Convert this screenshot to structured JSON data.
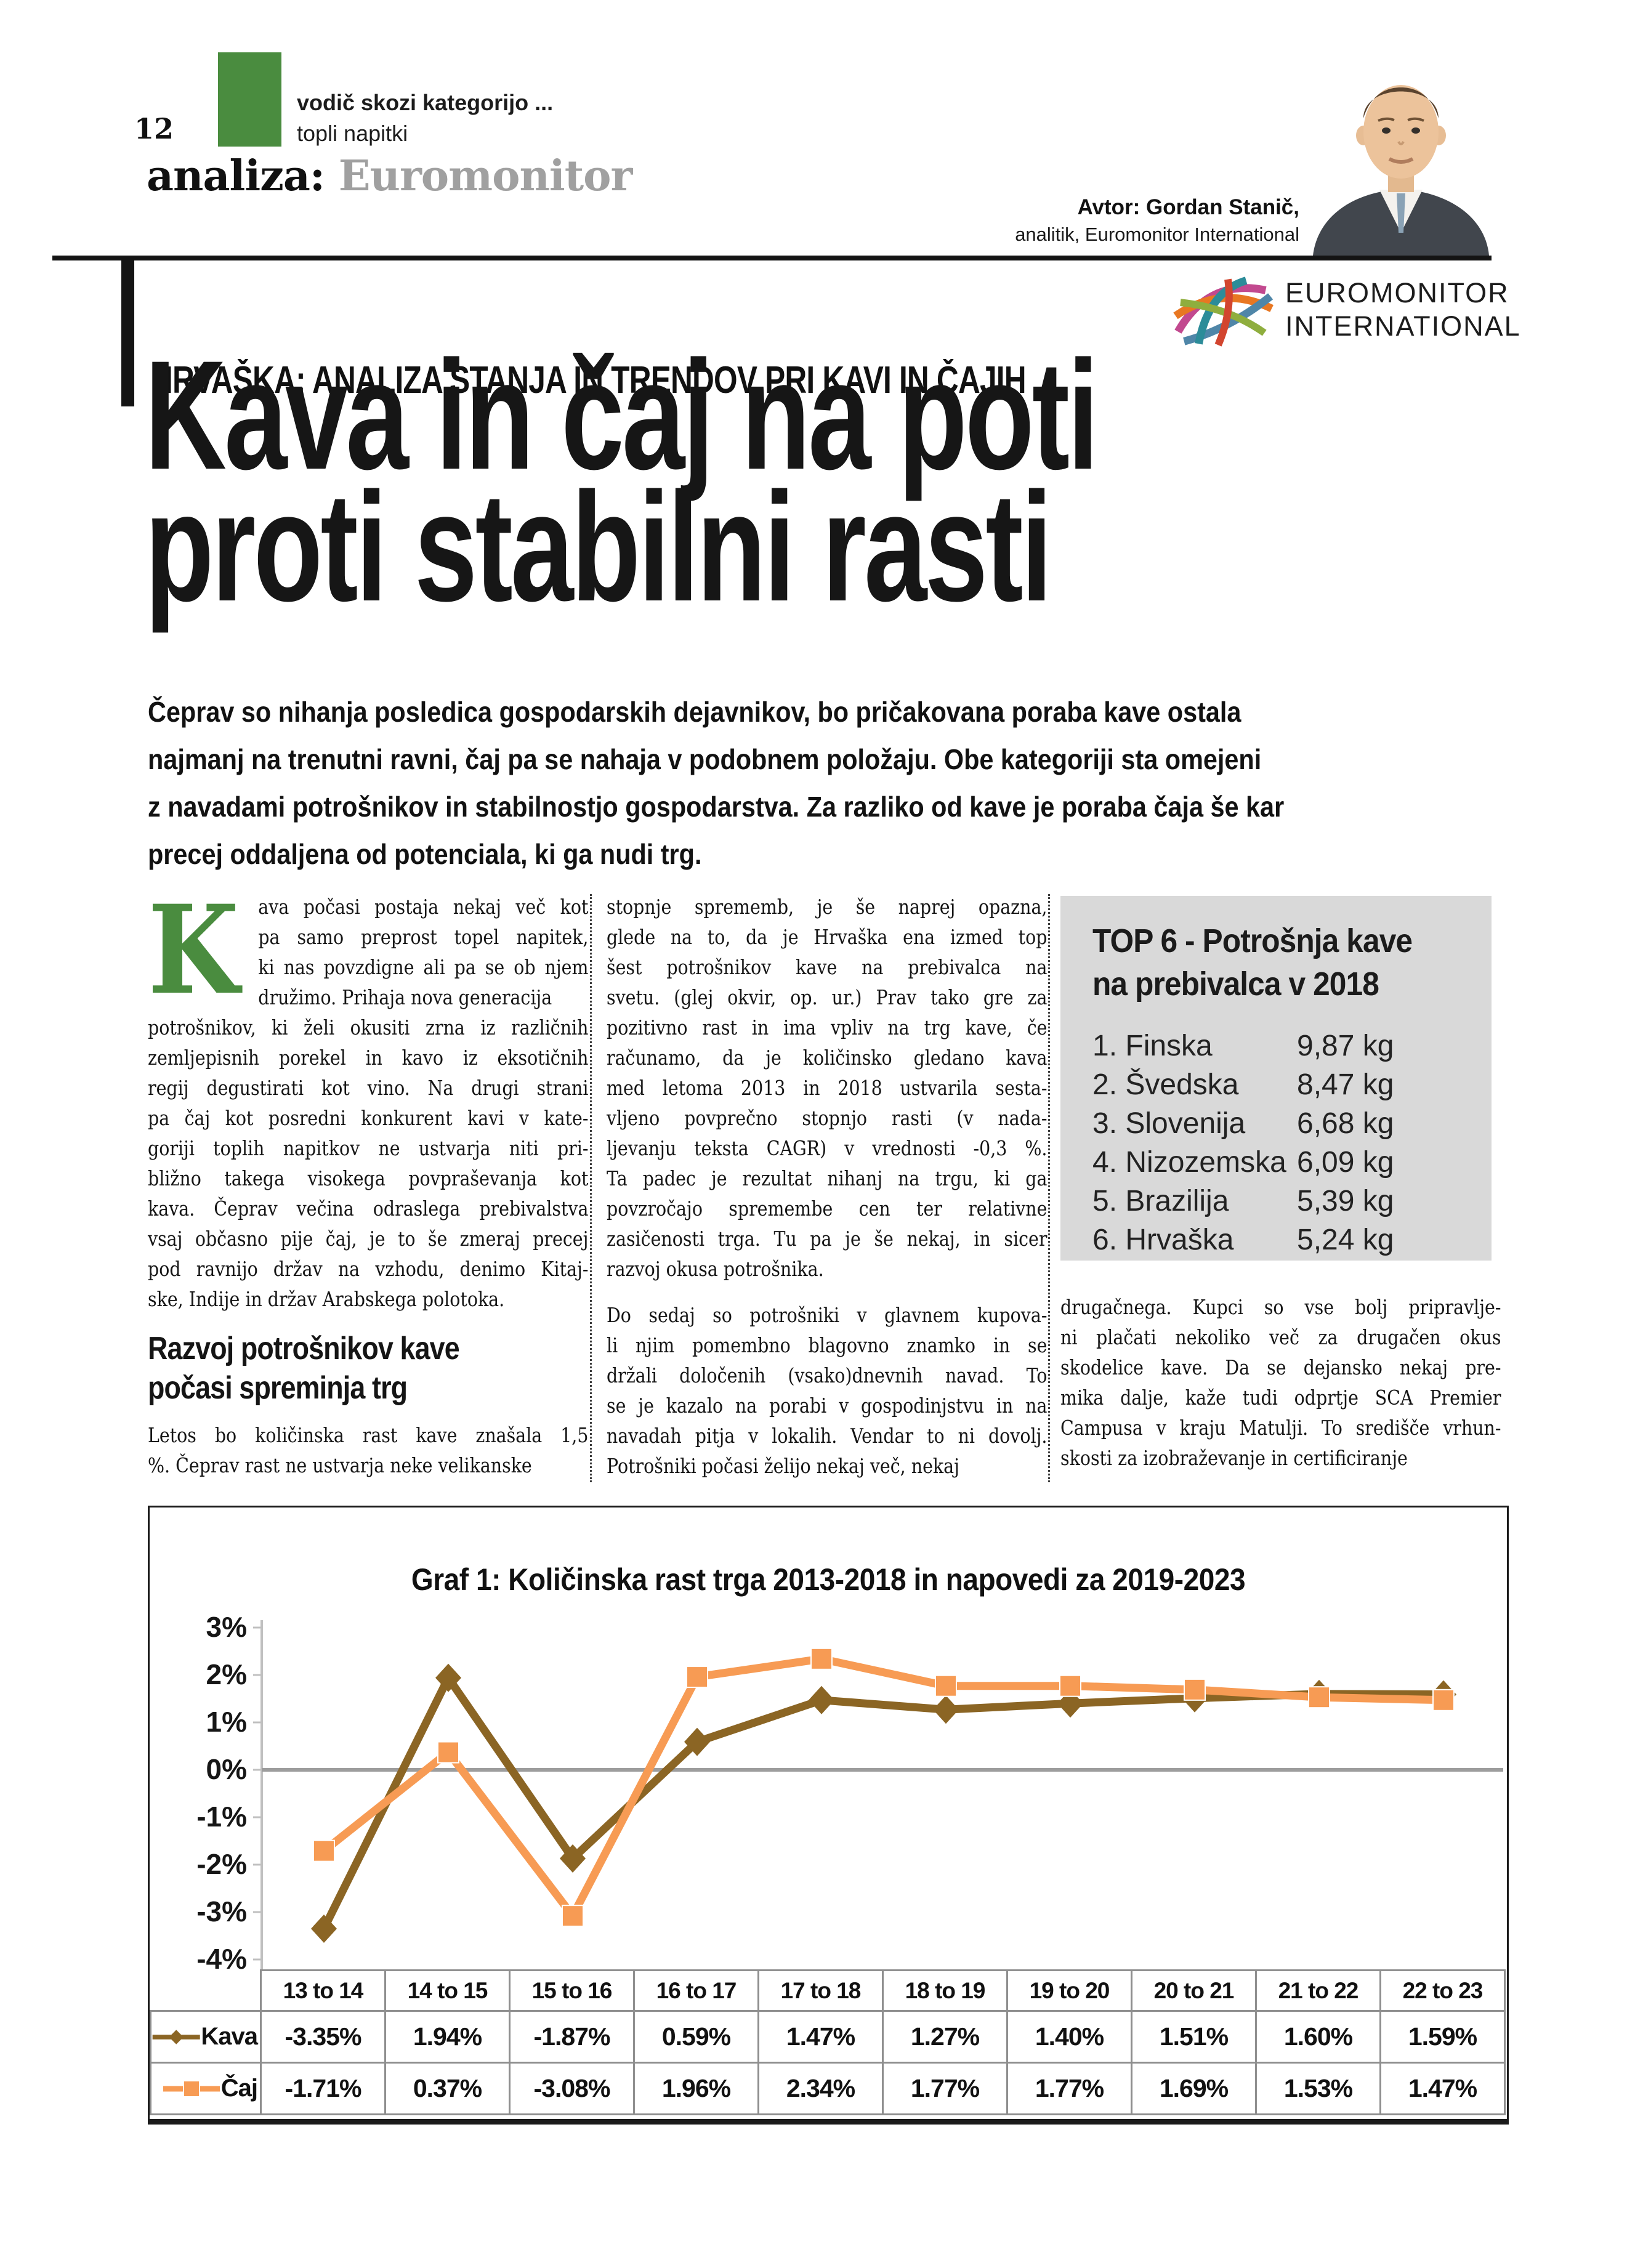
{
  "page_number": "12",
  "kicker": {
    "line1": "vodič skozi kategorijo ...",
    "line2": "topli napitki"
  },
  "masthead": {
    "prefix": "analiza:",
    "brand": "Euromonitor"
  },
  "author": {
    "line1": "Avtor: Gordan Stanič,",
    "line2": "analitik, Euromonitor International"
  },
  "logo": {
    "line1": "EUROMONITOR",
    "line2": "INTERNATIONAL"
  },
  "section_header": "HRVAŠKA: ANALIZA STANJA IN TRENDOV PRI KAVI IN ČAJIH",
  "headline": {
    "lines": [
      "Kava in čaj na poti",
      "proti stabilni rasti"
    ]
  },
  "intro": {
    "lines": [
      "Čeprav so nihanja posledica gospodarskih dejavnikov, bo pričakovana poraba kave ostala",
      "najmanj na trenutni ravni, čaj pa se nahaja v podobnem položaju. Obe kategoriji sta omejeni",
      "z navadami potrošnikov in stabilnostjo gospodarstva. Za razliko od kave je poraba čaja še kar",
      "precej oddaljena od potenciala, ki ga nudi trg."
    ]
  },
  "article": {
    "dropcap": "K",
    "col1_para1_indent_lines": [
      "ava počasi postaja nekaj več kot",
      "pa samo preprost topel napitek,",
      "ki nas povzdigne ali pa se ob njem",
      "družimo. Prihaja nova generacija"
    ],
    "col1_para1_lines": [
      "potrošnikov, ki želi okusiti zrna iz različnih",
      "zemljepisnih porekel in kavo iz eksotičnih",
      "regij degustirati kot vino. Na drugi strani",
      "pa čaj kot posredni konkurent kavi v kate-",
      "goriji toplih napitkov ne ustvarja niti pri-",
      "bližno takega visokega povpraševanja kot",
      "kava. Čeprav večina odraslega prebivalstva",
      "vsaj občasno pije čaj, je to še zmeraj precej",
      "pod ravnijo držav na vzhodu, denimo Kitaj-",
      "ske, Indije in držav Arabskega polotoka."
    ],
    "col1_subhead_lines": [
      "Razvoj potrošnikov kave",
      "počasi spreminja trg"
    ],
    "col1_para2_lines": [
      "Letos bo količinska rast kave znašala 1,5",
      "%. Čeprav rast ne ustvarja neke velikanske"
    ],
    "col2_para1_lines": [
      "stopnje sprememb, je še naprej opazna,",
      "glede na to, da je Hrvaška ena izmed top",
      "šest potrošnikov kave na prebivalca na",
      "svetu. (glej okvir, op. ur.) Prav tako gre za",
      "pozitivno rast in ima vpliv na trg kave, če",
      "računamo, da je količinsko gledano kava",
      "med letoma 2013 in 2018 ustvarila sesta-",
      "vljeno povprečno stopnjo rasti (v nada-",
      "ljevanju teksta CAGR) v vrednosti -0,3 %.",
      "Ta padec je rezultat nihanj na trgu, ki ga",
      "povzročajo spremembe cen ter relativne",
      "zasičenosti trga. Tu pa je še nekaj, in sicer",
      "razvoj okusa potrošnika."
    ],
    "col2_para2_lines": [
      "Do sedaj so potrošniki v glavnem kupova-",
      "li njim pomembno blagovno znamko in se",
      "držali določenih (vsako)dnevnih navad. To",
      "se je kazalo na porabi v gospodinjstvu in na",
      "navadah pitja v lokalih. Vendar to ni dovolj.",
      "Potrošniki počasi želijo nekaj več, nekaj"
    ],
    "col3_para_lines": [
      "drugačnega. Kupci so vse bolj pripravlje-",
      "ni plačati nekoliko več za drugačen okus",
      "skodelice kave. Da se dejansko nekaj pre-",
      "mika dalje, kaže tudi odprtje SCA Premier",
      "Campusa v kraju Matulji. To središče vrhun-",
      "skosti za izobraževanje in certificiranje"
    ]
  },
  "top6": {
    "title_lines": [
      "TOP 6 - Potrošnja kave",
      "na prebivalca v 2018"
    ],
    "items": [
      {
        "rank": "1.",
        "country": "Finska",
        "value": "9,87 kg"
      },
      {
        "rank": "2.",
        "country": "Švedska",
        "value": "8,47 kg"
      },
      {
        "rank": "3.",
        "country": "Slovenija",
        "value": "6,68 kg"
      },
      {
        "rank": "4.",
        "country": "Nizozemska",
        "value": "6,09 kg"
      },
      {
        "rank": "5.",
        "country": "Brazilija",
        "value": "5,39 kg"
      },
      {
        "rank": "6.",
        "country": "Hrvaška",
        "value": "5,24 kg"
      }
    ]
  },
  "chart_data": {
    "type": "line",
    "title": "Graf 1: Količinska rast trga 2013-2018 in napovedi za 2019-2023",
    "categories": [
      "13 to 14",
      "14 to 15",
      "15 to 16",
      "16 to 17",
      "17 to 18",
      "18 to 19",
      "19 to 20",
      "20 to 21",
      "21 to 22",
      "22 to 23"
    ],
    "series": [
      {
        "name": "Kava",
        "marker": "diamond",
        "color": "#8b6524",
        "values": [
          -3.35,
          1.94,
          -1.87,
          0.59,
          1.47,
          1.27,
          1.4,
          1.51,
          1.6,
          1.59
        ]
      },
      {
        "name": "Čaj",
        "marker": "square",
        "color": "#f79b54",
        "values": [
          -1.71,
          0.37,
          -3.08,
          1.96,
          2.34,
          1.77,
          1.77,
          1.69,
          1.53,
          1.47
        ]
      }
    ],
    "value_suffix": "%",
    "ylim": [
      -4,
      3
    ],
    "yticks": [
      3,
      2,
      1,
      0,
      -1,
      -2,
      -3,
      -4
    ],
    "grid": "zero-line-only",
    "axis_color": "#c0c0c0",
    "zero_line_color": "#9d9d9d",
    "legend_position": "table-left"
  }
}
